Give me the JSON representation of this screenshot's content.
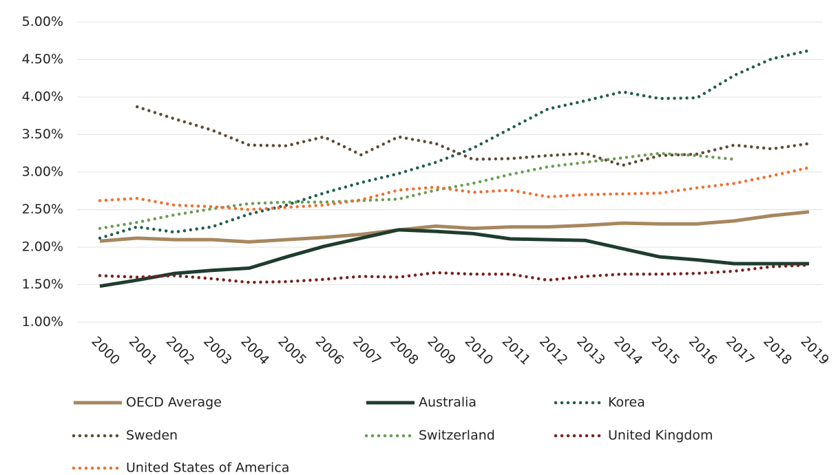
{
  "chart_data": {
    "type": "line",
    "categories": [
      "2000",
      "2001",
      "2002",
      "2003",
      "2004",
      "2005",
      "2006",
      "2007",
      "2008",
      "2009",
      "2010",
      "2011",
      "2012",
      "2013",
      "2014",
      "2015",
      "2016",
      "2017",
      "2018",
      "2019"
    ],
    "ylim": [
      1,
      5
    ],
    "yticks": [
      {
        "value": 1,
        "label": "1.00%"
      },
      {
        "value": 1.5,
        "label": "1.50%"
      },
      {
        "value": 2,
        "label": "2.00%"
      },
      {
        "value": 2.5,
        "label": "2.50%"
      },
      {
        "value": 3,
        "label": "3.00%"
      },
      {
        "value": 3.5,
        "label": "3.50%"
      },
      {
        "value": 4,
        "label": "4.00%"
      },
      {
        "value": 4.5,
        "label": "4.50%"
      },
      {
        "value": 5,
        "label": "5.00%"
      }
    ],
    "grid": true,
    "legend": "bottom",
    "series": [
      {
        "name": "OECD Average",
        "color": "#a8875f",
        "line_style": "solid",
        "values": [
          2.08,
          2.12,
          2.1,
          2.1,
          2.07,
          2.1,
          2.13,
          2.17,
          2.23,
          2.28,
          2.25,
          2.27,
          2.27,
          2.29,
          2.32,
          2.31,
          2.31,
          2.35,
          2.42,
          2.47
        ]
      },
      {
        "name": "Australia",
        "color": "#1e3d2f",
        "line_style": "solid",
        "values": [
          1.48,
          1.56,
          1.65,
          1.69,
          1.72,
          1.87,
          2.01,
          2.12,
          2.23,
          2.21,
          2.18,
          2.11,
          2.1,
          2.09,
          1.98,
          1.87,
          1.83,
          1.78,
          1.78,
          1.78
        ]
      },
      {
        "name": "Korea",
        "color": "#1f5e4f",
        "line_style": "dotted",
        "values": [
          2.12,
          2.27,
          2.2,
          2.27,
          2.44,
          2.56,
          2.72,
          2.86,
          2.98,
          3.13,
          3.32,
          3.58,
          3.84,
          3.95,
          4.07,
          3.98,
          3.99,
          4.29,
          4.51,
          4.62
        ]
      },
      {
        "name": "Sweden",
        "color": "#5e4a35",
        "line_style": "dotted",
        "values": [
          null,
          3.87,
          3.71,
          3.56,
          3.36,
          3.35,
          3.47,
          3.23,
          3.47,
          3.38,
          3.17,
          3.18,
          3.22,
          3.25,
          3.09,
          3.22,
          3.24,
          3.36,
          3.31,
          3.38
        ]
      },
      {
        "name": "Switzerland",
        "color": "#6a9e53",
        "line_style": "dotted",
        "values": [
          2.25,
          2.33,
          2.43,
          2.51,
          2.58,
          2.6,
          2.6,
          2.62,
          2.64,
          2.76,
          2.85,
          2.97,
          3.07,
          3.13,
          3.19,
          3.25,
          3.22,
          3.17,
          null,
          null
        ]
      },
      {
        "name": "United Kingdom",
        "color": "#7a2020",
        "line_style": "dotted",
        "values": [
          1.62,
          1.6,
          1.62,
          1.58,
          1.53,
          1.54,
          1.57,
          1.61,
          1.6,
          1.66,
          1.64,
          1.64,
          1.56,
          1.61,
          1.64,
          1.64,
          1.65,
          1.68,
          1.74,
          1.76
        ]
      },
      {
        "name": "United States of America",
        "color": "#f07030",
        "line_style": "dotted",
        "values": [
          2.62,
          2.65,
          2.56,
          2.54,
          2.5,
          2.53,
          2.56,
          2.63,
          2.76,
          2.8,
          2.73,
          2.76,
          2.67,
          2.7,
          2.71,
          2.72,
          2.79,
          2.85,
          2.95,
          3.06
        ]
      }
    ]
  }
}
